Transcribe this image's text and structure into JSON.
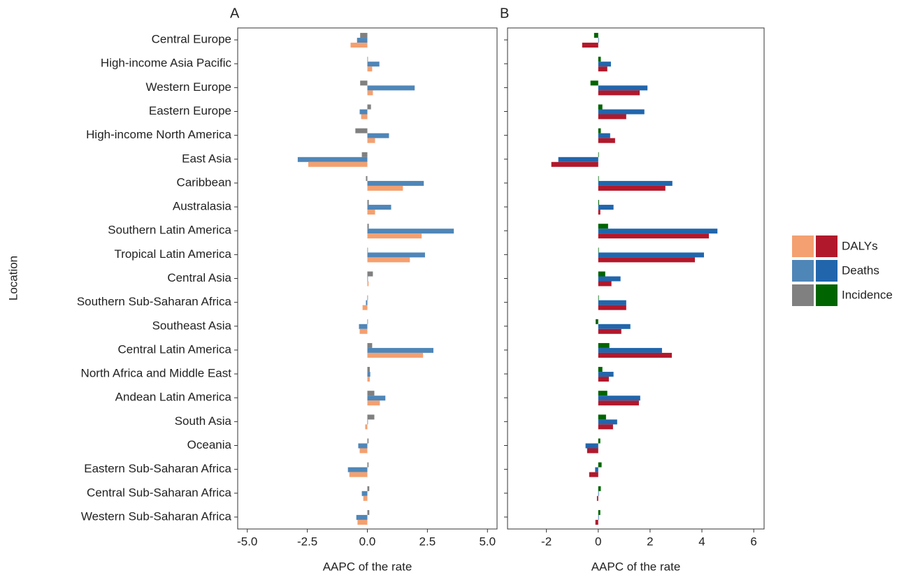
{
  "chart_data": [
    {
      "type": "bar",
      "orientation": "horizontal",
      "title": "A",
      "x_label": "AAPC of the rate",
      "y_label": "Location",
      "categories": [
        "Central Europe",
        "High-income Asia Pacific",
        "Western Europe",
        "Eastern Europe",
        "High-income North America",
        "East Asia",
        "Caribbean",
        "Australasia",
        "Southern Latin America",
        "Tropical Latin America",
        "Central Asia",
        "Southern Sub-Saharan Africa",
        "Southeast Asia",
        "Central Latin America",
        "North Africa and Middle East",
        "Andean Latin America",
        "South Asia",
        "Oceania",
        "Eastern Sub-Saharan Africa",
        "Central Sub-Saharan Africa",
        "Western Sub-Saharan Africa"
      ],
      "series": [
        {
          "color": "#808080",
          "values": [
            -0.3,
            0.02,
            -0.3,
            0.15,
            -0.5,
            -0.23,
            -0.06,
            0.06,
            0.06,
            0.02,
            0.23,
            0.0,
            0.0,
            0.2,
            0.1,
            0.29,
            0.29,
            0.05,
            0.05,
            0.08,
            0.08
          ]
        },
        {
          "color": "#4f86b8",
          "values": [
            -0.43,
            0.5,
            1.97,
            -0.32,
            0.9,
            -2.9,
            2.35,
            0.99,
            3.6,
            2.4,
            0.02,
            -0.06,
            -0.35,
            2.75,
            0.12,
            0.75,
            0.0,
            -0.38,
            -0.81,
            -0.23,
            -0.46
          ]
        },
        {
          "color": "#f4a070",
          "values": [
            -0.7,
            0.2,
            0.23,
            -0.26,
            0.32,
            -2.46,
            1.48,
            0.32,
            2.26,
            1.77,
            0.05,
            -0.2,
            -0.32,
            2.32,
            0.1,
            0.52,
            -0.09,
            -0.32,
            -0.75,
            -0.17,
            -0.41
          ]
        }
      ],
      "xlim": [
        -5.4,
        5.4
      ],
      "xticks": [
        {
          "value": -5,
          "label": "-5.0"
        },
        {
          "value": -2.5,
          "label": "-2.5"
        },
        {
          "value": 0,
          "label": "0.0"
        },
        {
          "value": 2.5,
          "label": "2.5"
        },
        {
          "value": 5,
          "label": "5.0"
        }
      ]
    },
    {
      "type": "bar",
      "orientation": "horizontal",
      "title": "B",
      "x_label": "AAPC of the rate",
      "series": [
        {
          "name": "Incidence",
          "color": "#006400",
          "values": [
            -0.16,
            0.1,
            -0.3,
            0.16,
            0.1,
            0.02,
            0.02,
            0.03,
            0.38,
            0.02,
            0.27,
            0.01,
            -0.1,
            0.43,
            0.16,
            0.35,
            0.3,
            0.08,
            0.13,
            0.1,
            0.08
          ]
        },
        {
          "name": "Deaths",
          "color": "#2166ac",
          "values": [
            0.02,
            0.49,
            1.9,
            1.78,
            0.46,
            -1.54,
            2.86,
            0.59,
            4.6,
            4.08,
            0.86,
            1.08,
            1.24,
            2.46,
            0.59,
            1.62,
            0.73,
            -0.49,
            -0.12,
            0.0,
            0.0
          ]
        },
        {
          "name": "DALYs",
          "color": "#b2182b",
          "values": [
            -0.62,
            0.35,
            1.6,
            1.08,
            0.65,
            -1.81,
            2.59,
            0.08,
            4.27,
            3.73,
            0.51,
            1.08,
            0.89,
            2.84,
            0.41,
            1.57,
            0.57,
            -0.43,
            -0.35,
            -0.05,
            -0.11
          ]
        }
      ],
      "xlim": [
        -3.5,
        6.4
      ],
      "xticks": [
        -2,
        0,
        2,
        4,
        6
      ]
    }
  ]
}
